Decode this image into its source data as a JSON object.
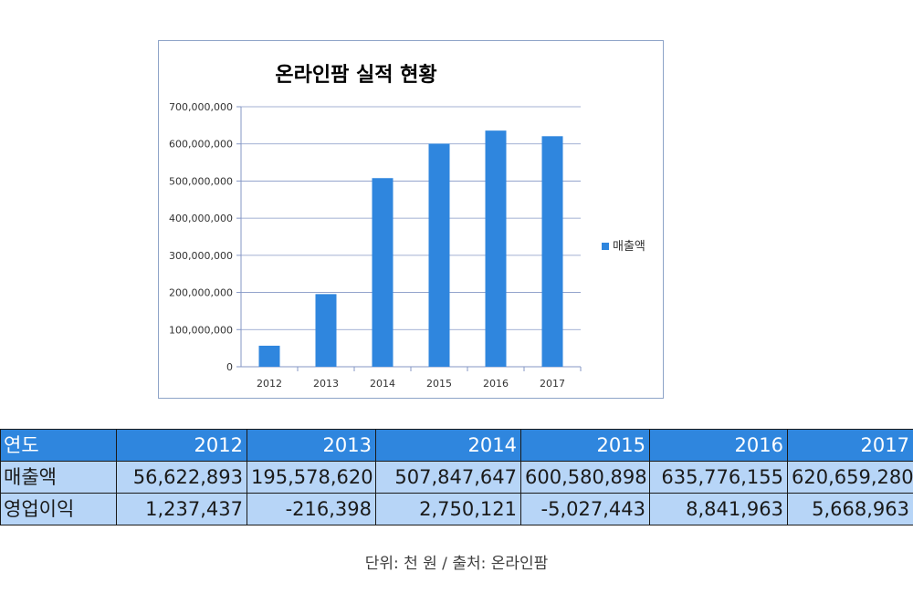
{
  "colors": {
    "bar": "#2f86de",
    "header": "#2f86de",
    "row": "#b7d5f7",
    "grid": "#8597c5"
  },
  "chart_data": {
    "type": "bar",
    "title": "온라인팜 실적 현황",
    "categories": [
      "2012",
      "2013",
      "2014",
      "2015",
      "2016",
      "2017"
    ],
    "series": [
      {
        "name": "매출액",
        "values": [
          56622893,
          195578620,
          507847647,
          600580898,
          635776155,
          620659280
        ]
      }
    ],
    "ylim": [
      0,
      700000000
    ],
    "yticks": [
      "0",
      "100,000,000",
      "200,000,000",
      "300,000,000",
      "400,000,000",
      "500,000,000",
      "600,000,000",
      "700,000,000"
    ],
    "grid": true,
    "legend_position": "right"
  },
  "table": {
    "header_label": "연도",
    "years": [
      "2012",
      "2013",
      "2014",
      "2015",
      "2016",
      "2017"
    ],
    "rows": [
      {
        "label": "매출액",
        "values": [
          "56,622,893",
          "195,578,620",
          "507,847,647",
          "600,580,898",
          "635,776,155",
          "620,659,280"
        ]
      },
      {
        "label": "영업이익",
        "values": [
          "1,237,437",
          "-216,398",
          "2,750,121",
          "-5,027,443",
          "8,841,963",
          "5,668,963"
        ]
      }
    ]
  },
  "footer": {
    "note": "단위: 천 원 / 출처: 온라인팜"
  }
}
